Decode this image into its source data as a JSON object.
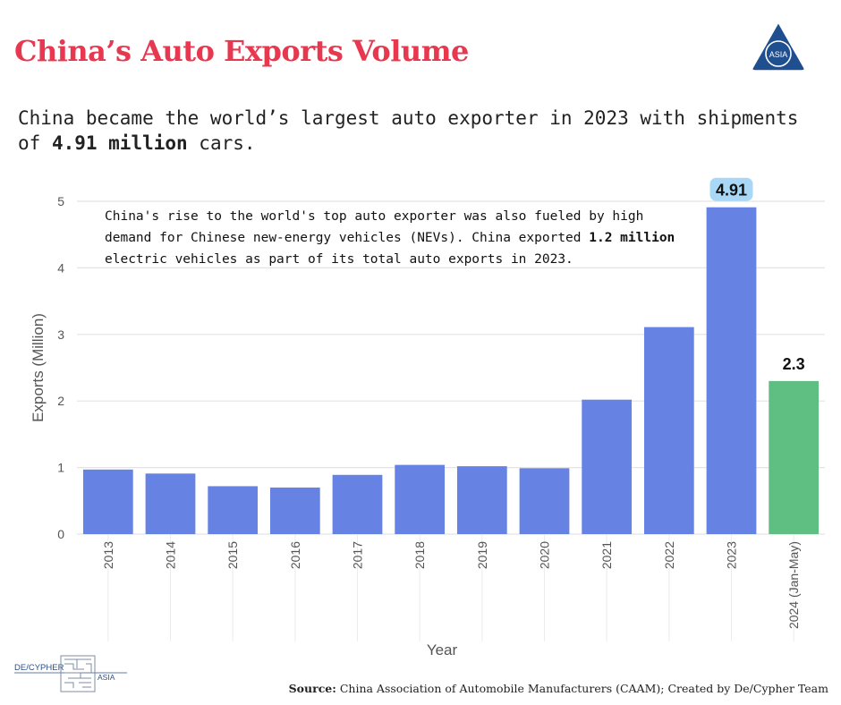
{
  "header": {
    "title": "China’s Auto Exports Volume",
    "subtitle_pre": "China became the world’s largest auto exporter in 2023 with shipments of ",
    "subtitle_bold": "4.91 million",
    "subtitle_post": " cars."
  },
  "logo": {
    "icon": "asia-triangle-logo-icon",
    "text": "ASIA"
  },
  "annotation": {
    "pre": "China's rise to the world's top auto exporter was also fueled by high demand for Chinese new-energy vehicles (NEVs). China exported ",
    "bold": "1.2 million",
    "post": " electric vehicles as part of its total auto exports in 2023."
  },
  "chart_data": {
    "type": "bar",
    "categories": [
      "2013",
      "2014",
      "2015",
      "2016",
      "2017",
      "2018",
      "2019",
      "2020",
      "2021",
      "2022",
      "2023",
      "2024 (Jan-May)"
    ],
    "values": [
      0.97,
      0.91,
      0.72,
      0.7,
      0.89,
      1.04,
      1.02,
      0.99,
      2.02,
      3.11,
      4.91,
      2.3
    ],
    "bar_colors": [
      "#6683e3",
      "#6683e3",
      "#6683e3",
      "#6683e3",
      "#6683e3",
      "#6683e3",
      "#6683e3",
      "#6683e3",
      "#6683e3",
      "#6683e3",
      "#6683e3",
      "#5fbf83"
    ],
    "data_labels": [
      {
        "category": "2023",
        "text": "4.91",
        "highlight": "#a9d8f7"
      },
      {
        "category": "2024 (Jan-May)",
        "text": "2.3",
        "highlight": ""
      }
    ],
    "xlabel": "Year",
    "ylabel": "Exports (Million)",
    "ylim": [
      0,
      5
    ],
    "yticks": [
      0,
      1,
      2,
      3,
      4,
      5
    ],
    "grid": true
  },
  "footer": {
    "source_label": "Source:",
    "source_text": " China Association of Automobile Manufacturers (CAAM); Created by De/Cypher Team",
    "brand_left": "DE/CYPHER",
    "brand_right": "ASIA"
  }
}
